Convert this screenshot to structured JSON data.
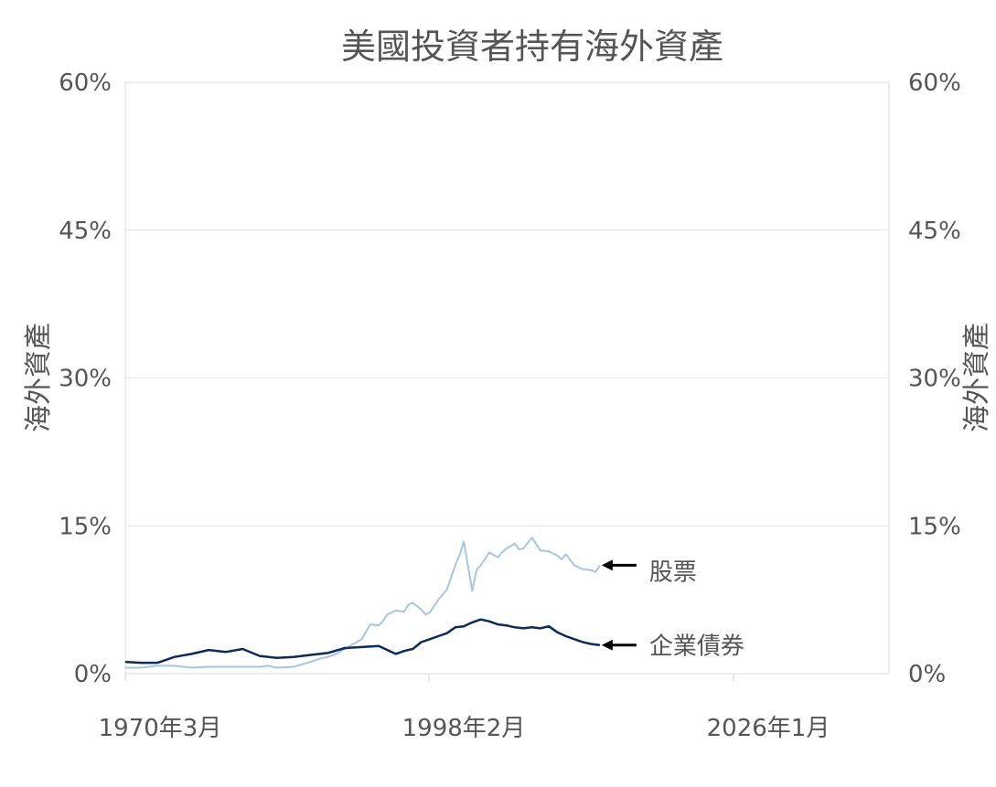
{
  "chart_data": {
    "type": "line",
    "title": "美國投資者持有海外資產",
    "ylabel_left": "海外資產",
    "ylabel_right": "海外資產",
    "x_ticks": [
      "1970年3月",
      "1998年2月",
      "2026年1月"
    ],
    "y_ticks": [
      "0%",
      "15%",
      "30%",
      "45%",
      "60%"
    ],
    "ylim": [
      0,
      60
    ],
    "grid": true,
    "x_range": [
      1970.2,
      2060.0
    ],
    "series": [
      {
        "name": "股票",
        "color": "#a4c6e3",
        "x": [
          1970.2,
          1972,
          1974,
          1976,
          1978,
          1980,
          1982,
          1984,
          1986,
          1987,
          1988,
          1990,
          1992,
          1993,
          1994,
          1995,
          1996,
          1997,
          1998,
          1999,
          2000,
          2000.5,
          2001,
          2002,
          2003,
          2003.5,
          2004,
          2005,
          2005.5,
          2006,
          2007,
          2008,
          2009,
          2009.5,
          2010,
          2011,
          2011.5,
          2012,
          2013,
          2014,
          2014.5,
          2015,
          2016,
          2016.5,
          2017,
          2018,
          2019,
          2020,
          2021,
          2021.5,
          2022,
          2023,
          2024,
          2025,
          2025.5,
          2026
        ],
        "values": [
          0.6,
          0.6,
          0.8,
          0.8,
          0.6,
          0.7,
          0.7,
          0.7,
          0.7,
          0.8,
          0.6,
          0.7,
          1.2,
          1.5,
          1.7,
          2.0,
          2.5,
          3.0,
          3.5,
          5.0,
          4.9,
          5.3,
          6.0,
          6.4,
          6.3,
          7.0,
          7.2,
          6.5,
          6.0,
          6.2,
          7.5,
          8.5,
          11.0,
          12.0,
          13.4,
          8.4,
          10.5,
          11.0,
          12.3,
          11.8,
          12.3,
          12.7,
          13.2,
          12.6,
          12.7,
          13.8,
          12.5,
          12.4,
          12.0,
          11.6,
          12.1,
          11.0,
          10.6,
          10.5,
          10.3,
          11.0
        ]
      },
      {
        "name": "企業債券",
        "color": "#0c2a5a",
        "x": [
          1970.2,
          1972,
          1974,
          1976,
          1978,
          1980,
          1982,
          1984,
          1986,
          1988,
          1990,
          1992,
          1994,
          1996,
          1998,
          2000,
          2002,
          2003,
          2004,
          2005,
          2006,
          2007,
          2008,
          2009,
          2010,
          2011,
          2012,
          2013,
          2014,
          2015,
          2016,
          2017,
          2018,
          2019,
          2020,
          2021,
          2022,
          2023,
          2024,
          2025,
          2026
        ],
        "values": [
          1.2,
          1.1,
          1.1,
          1.7,
          2.0,
          2.4,
          2.2,
          2.5,
          1.8,
          1.6,
          1.7,
          1.9,
          2.1,
          2.6,
          2.7,
          2.8,
          2.0,
          2.3,
          2.5,
          3.2,
          3.5,
          3.8,
          4.1,
          4.7,
          4.8,
          5.2,
          5.5,
          5.3,
          5.0,
          4.9,
          4.7,
          4.6,
          4.7,
          4.6,
          4.8,
          4.2,
          3.8,
          3.5,
          3.2,
          3.0,
          2.9
        ]
      }
    ]
  }
}
